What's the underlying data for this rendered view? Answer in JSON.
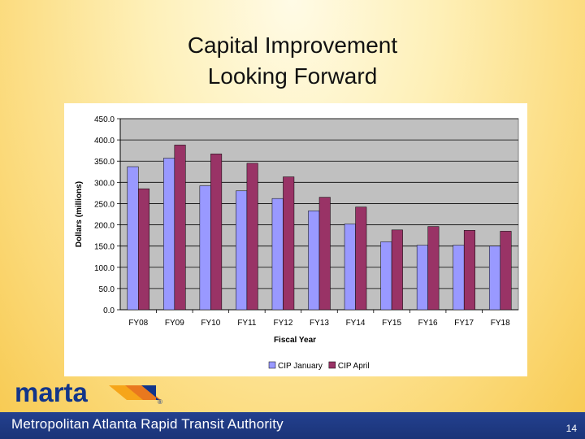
{
  "slide": {
    "title_line1": "Capital Improvement",
    "title_line2": "Looking Forward",
    "logo_text": "marta",
    "logo_mark": "®",
    "footer_text": "Metropolitan Atlanta Rapid Transit Authority",
    "page_number": "14"
  },
  "colors": {
    "plot_bg": "#c0c0c0",
    "series1": "#9999ff",
    "series2": "#993366",
    "footer": "#1f3a87"
  },
  "chart_data": {
    "type": "bar",
    "title": "",
    "xlabel": "Fiscal Year",
    "ylabel": "Dollars (millions)",
    "ylim": [
      0,
      450
    ],
    "yticks": [
      "0.0",
      "50.0",
      "100.0",
      "150.0",
      "200.0",
      "250.0",
      "300.0",
      "350.0",
      "400.0",
      "450.0"
    ],
    "ytick_values": [
      0,
      50,
      100,
      150,
      200,
      250,
      300,
      350,
      400,
      450
    ],
    "categories": [
      "FY08",
      "FY09",
      "FY10",
      "FY11",
      "FY12",
      "FY13",
      "FY14",
      "FY15",
      "FY16",
      "FY17",
      "FY18"
    ],
    "series": [
      {
        "name": "CIP January",
        "color": "#9999ff",
        "values": [
          337,
          357,
          292,
          280,
          262,
          233,
          202,
          160,
          152,
          152,
          150
        ]
      },
      {
        "name": "CIP April",
        "color": "#993366",
        "values": [
          285,
          388,
          367,
          345,
          313,
          265,
          242,
          188,
          196,
          187,
          185
        ]
      }
    ],
    "grid": true,
    "legend_position": "bottom"
  }
}
